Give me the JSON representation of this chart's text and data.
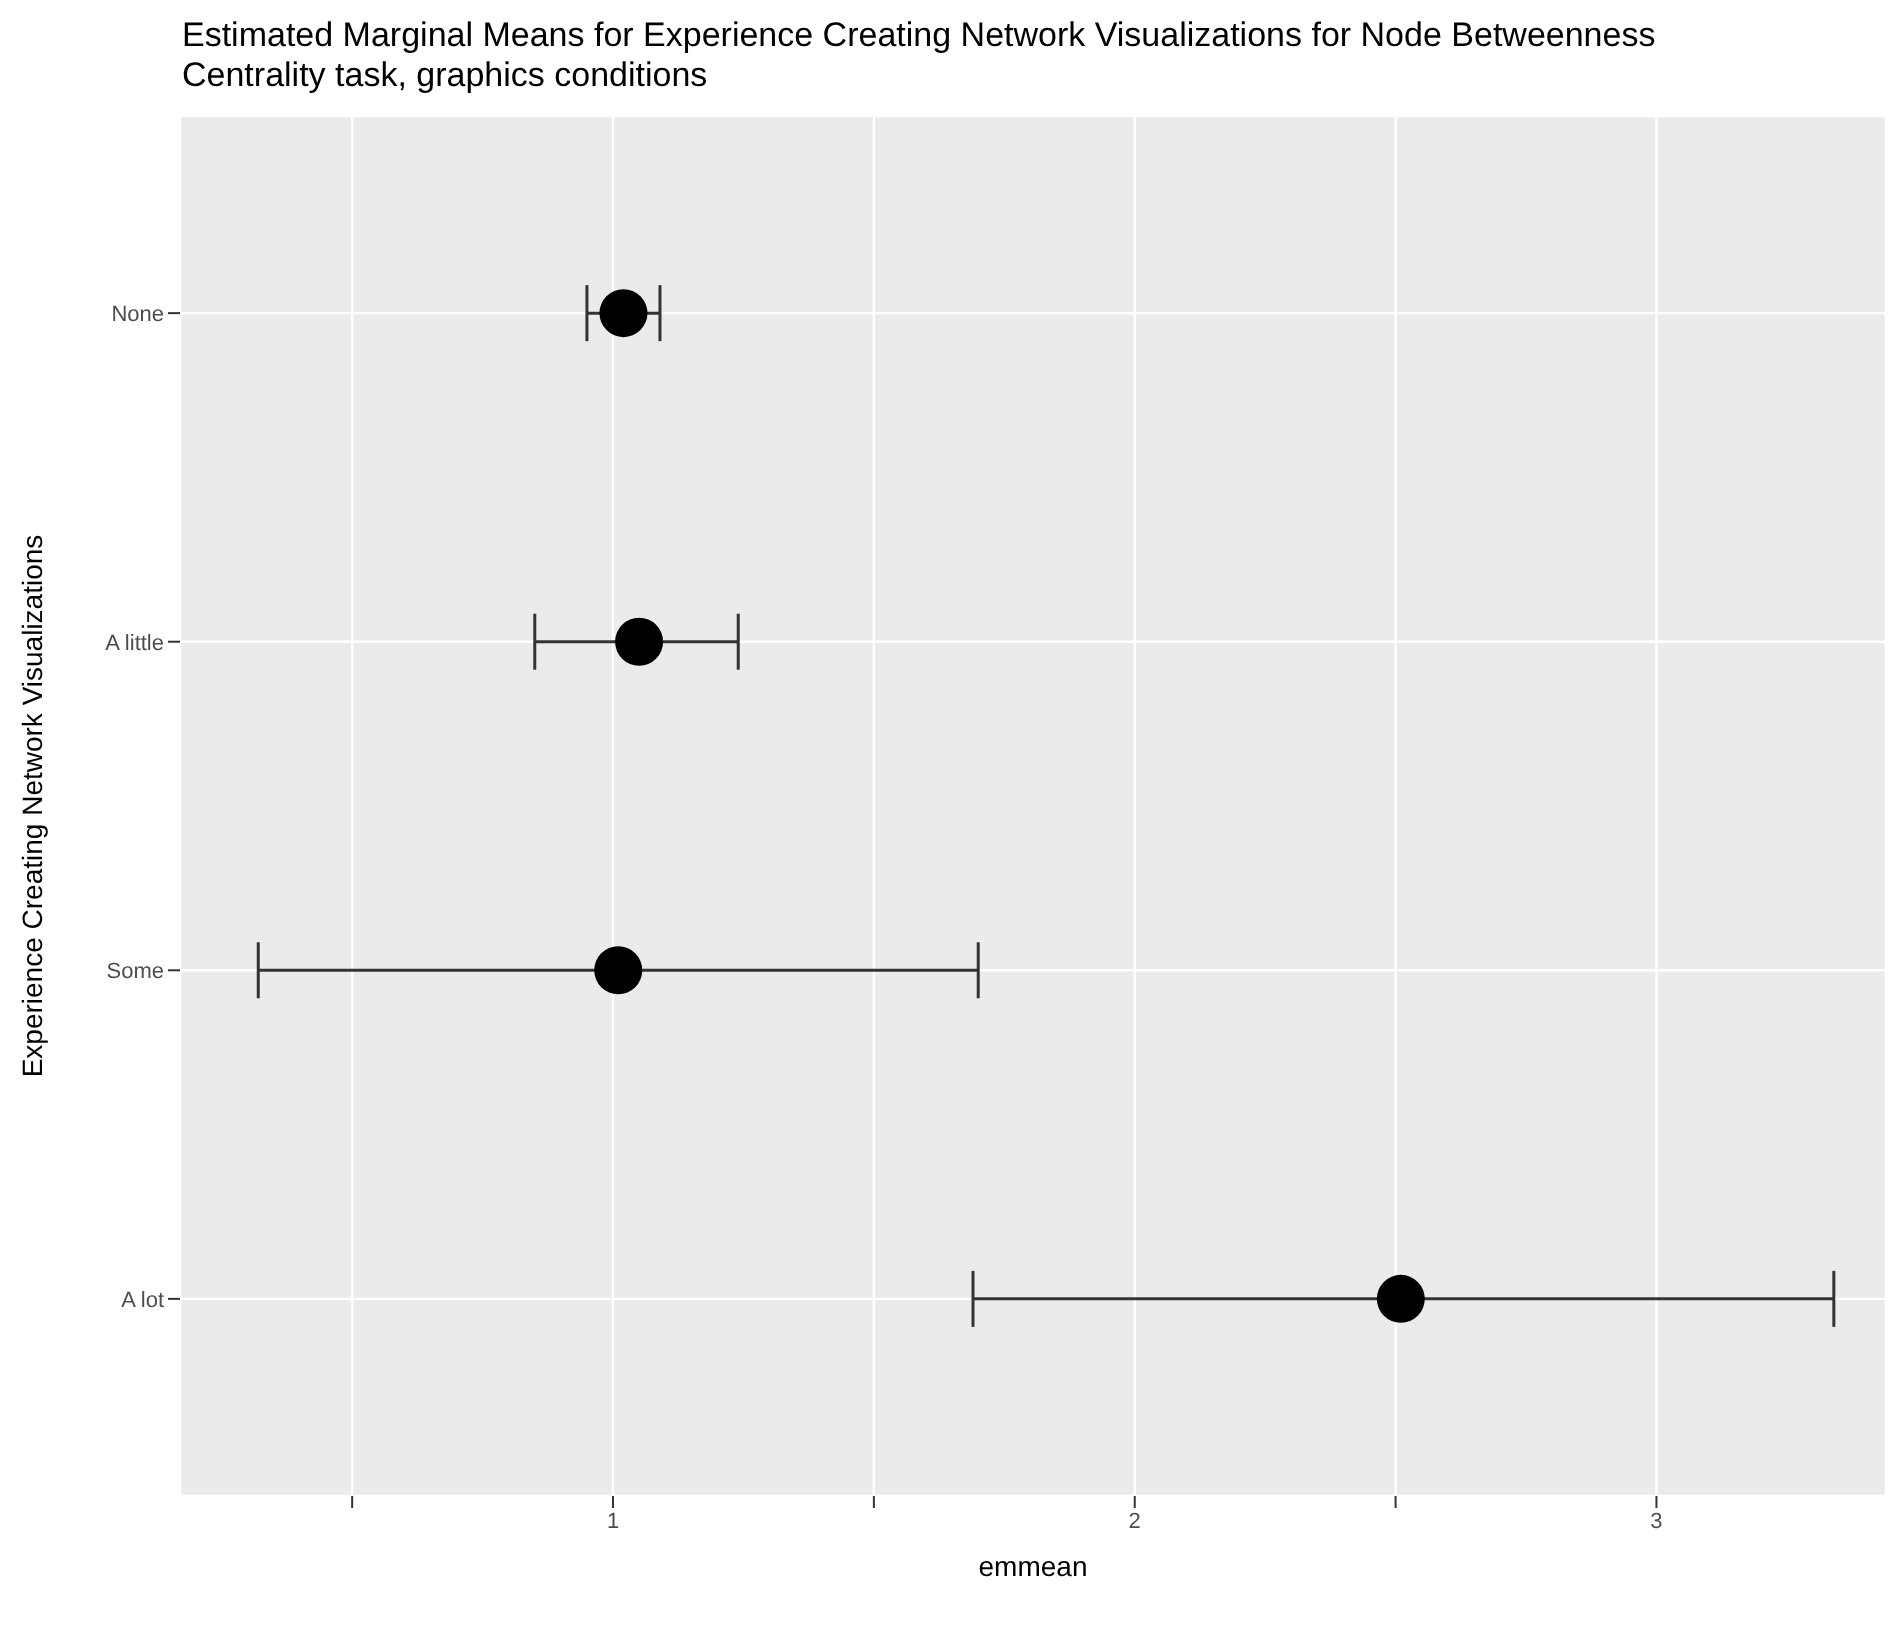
{
  "chart_data": {
    "type": "scatter",
    "title": "Estimated Marginal Means for Experience Creating Network Visualizations for Node Betweenness Centrality task, graphics conditions",
    "orientation": "horizontal",
    "xlabel": "emmean",
    "ylabel": "Experience Creating Network Visualizations",
    "categories": [
      "None",
      "A little",
      "Some",
      "A lot"
    ],
    "values": [
      1.02,
      1.05,
      1.01,
      2.51
    ],
    "errors": [
      [
        0.95,
        1.09
      ],
      [
        0.85,
        1.24
      ],
      [
        0.32,
        1.7
      ],
      [
        1.69,
        3.34
      ]
    ],
    "color": "#000000",
    "marker": "circle",
    "xlim": [
      0.17,
      3.44
    ],
    "xticks": [
      {
        "value": 0.5,
        "label": null
      },
      1,
      {
        "value": 1.5,
        "label": null
      },
      2,
      {
        "value": 2.5,
        "label": null
      },
      3
    ],
    "grid": true
  }
}
